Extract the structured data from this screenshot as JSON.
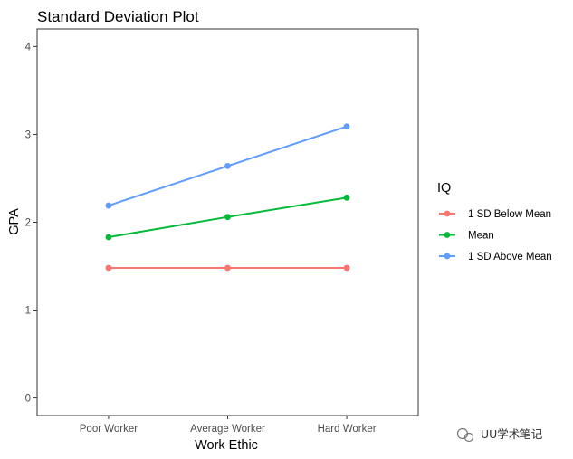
{
  "chart_data": {
    "type": "line",
    "title": "Standard Deviation Plot",
    "xlabel": "Work Ethic",
    "ylabel": "GPA",
    "categories": [
      "Poor Worker",
      "Average Worker",
      "Hard Worker"
    ],
    "ylim": [
      -0.2,
      4.2
    ],
    "yticks": [
      0,
      1,
      2,
      3,
      4
    ],
    "grid": false,
    "legend": {
      "title": "IQ",
      "placement": "right"
    },
    "series": [
      {
        "name": "1 SD Below Mean",
        "color": "#F8766D",
        "values": [
          1.48,
          1.48,
          1.48
        ]
      },
      {
        "name": "Mean",
        "color": "#00BA38",
        "values": [
          1.83,
          2.06,
          2.28
        ]
      },
      {
        "name": "1 SD Above Mean",
        "color": "#619CFF",
        "values": [
          2.19,
          2.64,
          3.09
        ]
      }
    ]
  },
  "watermark": {
    "icon": "wechat-icon",
    "text": "UU学术笔记"
  }
}
